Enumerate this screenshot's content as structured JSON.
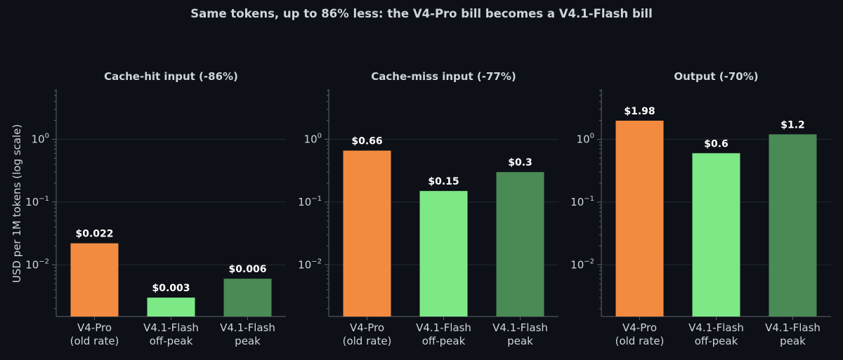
{
  "figure": {
    "title": "Same tokens, up to 86% less: the V4-Pro bill becomes a V4.1-Flash bill",
    "ylabel": "USD per 1M tokens (log scale)",
    "colors": {
      "background": "#0d1017",
      "text": "#cfd3da",
      "axis": "#5d626b",
      "grid": "#23272f",
      "value_label": "#ffffff"
    }
  },
  "chart_data": [
    {
      "type": "bar",
      "title": "Cache-hit input  (-86%)",
      "scale": "log",
      "ylim": [
        0.0015,
        6.3
      ],
      "yticks": [
        {
          "exp": "0",
          "value": 1
        },
        {
          "exp": "−1",
          "value": 0.1
        },
        {
          "exp": "−2",
          "value": 0.01
        }
      ],
      "categories": [
        {
          "lines": [
            "V4-Pro",
            "(old rate)"
          ]
        },
        {
          "lines": [
            "V4.1-Flash",
            "off-peak"
          ]
        },
        {
          "lines": [
            "V4.1-Flash",
            "peak"
          ]
        }
      ],
      "values": [
        0.022,
        0.003,
        0.006
      ],
      "labels": [
        "$0.022",
        "$0.003",
        "$0.006"
      ],
      "colors": [
        "#f28b40",
        "#7de886",
        "#4a8a55"
      ]
    },
    {
      "type": "bar",
      "title": "Cache-miss input  (-77%)",
      "scale": "log",
      "ylim": [
        0.0015,
        6.3
      ],
      "yticks": [
        {
          "exp": "0",
          "value": 1
        },
        {
          "exp": "−1",
          "value": 0.1
        },
        {
          "exp": "−2",
          "value": 0.01
        }
      ],
      "categories": [
        {
          "lines": [
            "V4-Pro",
            "(old rate)"
          ]
        },
        {
          "lines": [
            "V4.1-Flash",
            "off-peak"
          ]
        },
        {
          "lines": [
            "V4.1-Flash",
            "peak"
          ]
        }
      ],
      "values": [
        0.66,
        0.15,
        0.3
      ],
      "labels": [
        "$0.66",
        "$0.15",
        "$0.3"
      ],
      "colors": [
        "#f28b40",
        "#7de886",
        "#4a8a55"
      ]
    },
    {
      "type": "bar",
      "title": "Output  (-70%)",
      "scale": "log",
      "ylim": [
        0.0015,
        6.3
      ],
      "yticks": [
        {
          "exp": "0",
          "value": 1
        },
        {
          "exp": "−1",
          "value": 0.1
        },
        {
          "exp": "−2",
          "value": 0.01
        }
      ],
      "categories": [
        {
          "lines": [
            "V4-Pro",
            "(old rate)"
          ]
        },
        {
          "lines": [
            "V4.1-Flash",
            "off-peak"
          ]
        },
        {
          "lines": [
            "V4.1-Flash",
            "peak"
          ]
        }
      ],
      "values": [
        1.98,
        0.6,
        1.2
      ],
      "labels": [
        "$1.98",
        "$0.6",
        "$1.2"
      ],
      "colors": [
        "#f28b40",
        "#7de886",
        "#4a8a55"
      ]
    }
  ]
}
